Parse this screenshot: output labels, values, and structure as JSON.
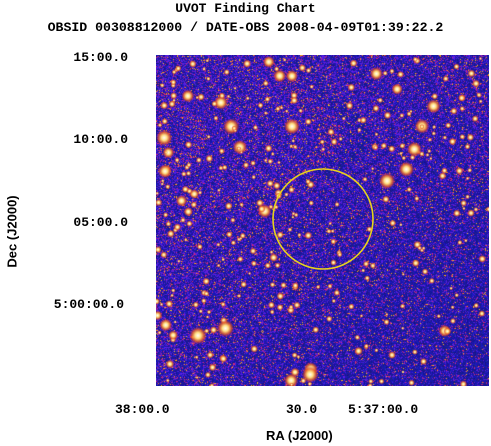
{
  "title": "UVOT Finding Chart",
  "subtitle": "OBSID 00308812000 / DATE-OBS 2008-04-09T01:39:22.2",
  "axes": {
    "xlabel": "RA (J2000)",
    "ylabel": "Dec (J2000)",
    "x_ticks": [
      "38:00.0",
      "30.0",
      "5:37:00.0"
    ],
    "y_ticks": [
      "15:00.0",
      "10:00.0",
      "05:00.0",
      "5:00:00.0"
    ]
  },
  "colors": {
    "background_sky": "#1a1fb8",
    "star_core": "#ffffff",
    "star_halo": "#d05a20",
    "circle": "#e8d21c"
  }
}
